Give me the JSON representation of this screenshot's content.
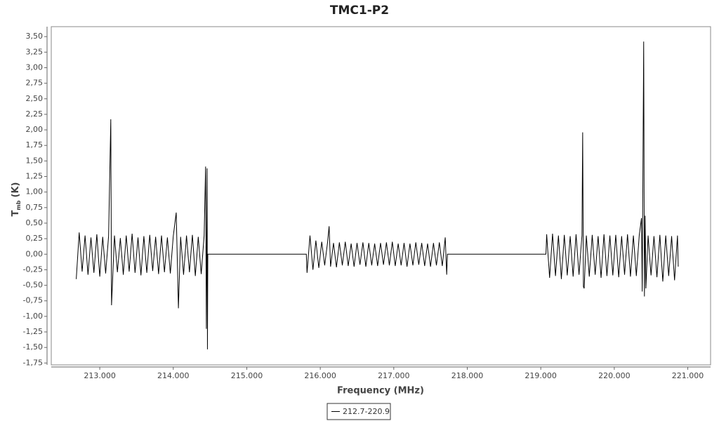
{
  "chart_data": {
    "type": "line",
    "title": "TMC1-P2",
    "x_label": "Frequency (MHz)",
    "y_label": "T",
    "y_label_sub": "mb",
    "y_label_unit": "(K)",
    "xlim": [
      212.34,
      221.31
    ],
    "ylim": [
      -1.78,
      3.66
    ],
    "xticks": [
      {
        "value": 213,
        "label": "213.000"
      },
      {
        "value": 214,
        "label": "214.000"
      },
      {
        "value": 215,
        "label": "215.000"
      },
      {
        "value": 216,
        "label": "216.000"
      },
      {
        "value": 217,
        "label": "217.000"
      },
      {
        "value": 218,
        "label": "218.000"
      },
      {
        "value": 219,
        "label": "219.000"
      },
      {
        "value": 220,
        "label": "220.000"
      },
      {
        "value": 221,
        "label": "221.000"
      }
    ],
    "yticks": [
      {
        "value": -1.75,
        "label": "-1,75"
      },
      {
        "value": -1.5,
        "label": "-1,50"
      },
      {
        "value": -1.25,
        "label": "-1,25"
      },
      {
        "value": -1,
        "label": "-1,00"
      },
      {
        "value": -0.75,
        "label": "-0,75"
      },
      {
        "value": -0.5,
        "label": "-0,50"
      },
      {
        "value": -0.25,
        "label": "-0,25"
      },
      {
        "value": 0,
        "label": "0,00"
      },
      {
        "value": 0.25,
        "label": "0,25"
      },
      {
        "value": 0.5,
        "label": "0,50"
      },
      {
        "value": 0.75,
        "label": "0,75"
      },
      {
        "value": 1,
        "label": "1,00"
      },
      {
        "value": 1.25,
        "label": "1,25"
      },
      {
        "value": 1.5,
        "label": "1,50"
      },
      {
        "value": 1.75,
        "label": "1,75"
      },
      {
        "value": 2,
        "label": "2,00"
      },
      {
        "value": 2.25,
        "label": "2,25"
      },
      {
        "value": 2.5,
        "label": "2,50"
      },
      {
        "value": 2.75,
        "label": "2,75"
      },
      {
        "value": 3,
        "label": "3,00"
      },
      {
        "value": 3.25,
        "label": "3,25"
      },
      {
        "value": 3.5,
        "label": "3,50"
      }
    ],
    "series": [
      {
        "name": "212.7-220.9",
        "color": "#000000",
        "x": [
          212.68,
          212.72,
          212.76,
          212.8,
          212.84,
          212.88,
          212.92,
          212.96,
          213.0,
          213.04,
          213.08,
          213.12,
          213.15,
          213.16,
          213.2,
          213.24,
          213.28,
          213.32,
          213.36,
          213.4,
          213.44,
          213.48,
          213.52,
          213.56,
          213.6,
          213.64,
          213.68,
          213.72,
          213.76,
          213.8,
          213.84,
          213.88,
          213.92,
          213.96,
          214.0,
          214.04,
          214.07,
          214.1,
          214.14,
          214.18,
          214.22,
          214.26,
          214.3,
          214.34,
          214.38,
          214.42,
          214.44,
          214.45,
          214.46,
          214.465,
          214.47,
          215.81,
          215.82,
          215.86,
          215.9,
          215.94,
          215.98,
          216.02,
          216.06,
          216.1,
          216.12,
          216.14,
          216.18,
          216.22,
          216.26,
          216.3,
          216.34,
          216.38,
          216.42,
          216.46,
          216.5,
          216.54,
          216.58,
          216.62,
          216.66,
          216.7,
          216.74,
          216.78,
          216.82,
          216.86,
          216.9,
          216.94,
          216.98,
          217.02,
          217.06,
          217.1,
          217.14,
          217.18,
          217.22,
          217.26,
          217.3,
          217.34,
          217.38,
          217.42,
          217.46,
          217.5,
          217.54,
          217.58,
          217.62,
          217.66,
          217.7,
          217.72,
          217.73,
          219.07,
          219.08,
          219.12,
          219.16,
          219.2,
          219.24,
          219.28,
          219.32,
          219.36,
          219.4,
          219.44,
          219.48,
          219.52,
          219.56,
          219.57,
          219.58,
          219.59,
          219.62,
          219.66,
          219.7,
          219.74,
          219.78,
          219.82,
          219.86,
          219.9,
          219.94,
          219.98,
          220.02,
          220.06,
          220.1,
          220.14,
          220.18,
          220.22,
          220.26,
          220.3,
          220.34,
          220.37,
          220.38,
          220.4,
          220.41,
          220.42,
          220.43,
          220.46,
          220.5,
          220.54,
          220.58,
          220.62,
          220.66,
          220.7,
          220.74,
          220.78,
          220.82,
          220.86,
          220.87
        ],
        "values": [
          -0.4,
          0.35,
          -0.28,
          0.3,
          -0.33,
          0.27,
          -0.3,
          0.32,
          -0.36,
          0.28,
          -0.31,
          0.29,
          2.17,
          -0.82,
          0.3,
          -0.29,
          0.26,
          -0.33,
          0.3,
          -0.28,
          0.33,
          -0.3,
          0.27,
          -0.34,
          0.29,
          -0.3,
          0.31,
          -0.27,
          0.28,
          -0.32,
          0.3,
          -0.29,
          0.27,
          -0.31,
          0.29,
          0.67,
          -0.87,
          0.28,
          -0.33,
          0.3,
          -0.29,
          0.31,
          -0.35,
          0.28,
          -0.32,
          0.3,
          1.41,
          -1.2,
          1.38,
          -1.53,
          0.0,
          0.0,
          -0.3,
          0.3,
          -0.25,
          0.22,
          -0.22,
          0.2,
          -0.18,
          0.2,
          0.45,
          -0.2,
          0.18,
          -0.21,
          0.19,
          -0.18,
          0.2,
          -0.19,
          0.17,
          -0.2,
          0.18,
          -0.17,
          0.19,
          -0.2,
          0.18,
          -0.18,
          0.17,
          -0.19,
          0.18,
          -0.17,
          0.19,
          -0.18,
          0.2,
          -0.19,
          0.17,
          -0.18,
          0.18,
          -0.2,
          0.17,
          -0.18,
          0.19,
          -0.17,
          0.18,
          -0.19,
          0.17,
          -0.2,
          0.18,
          -0.18,
          0.19,
          -0.19,
          0.27,
          -0.33,
          0.0,
          0.0,
          0.32,
          -0.38,
          0.33,
          -0.35,
          0.3,
          -0.4,
          0.31,
          -0.34,
          0.29,
          -0.36,
          0.32,
          -0.33,
          0.3,
          1.96,
          -0.52,
          -0.55,
          0.3,
          -0.36,
          0.31,
          -0.33,
          0.29,
          -0.38,
          0.32,
          -0.35,
          0.3,
          -0.34,
          0.31,
          -0.37,
          0.29,
          -0.33,
          0.32,
          -0.36,
          0.3,
          -0.35,
          0.31,
          0.58,
          -0.6,
          3.42,
          -0.68,
          0.62,
          -0.55,
          0.3,
          -0.34,
          0.29,
          -0.37,
          0.31,
          -0.44,
          0.3,
          -0.35,
          0.29,
          -0.42,
          0.3,
          -0.2
        ]
      }
    ]
  }
}
